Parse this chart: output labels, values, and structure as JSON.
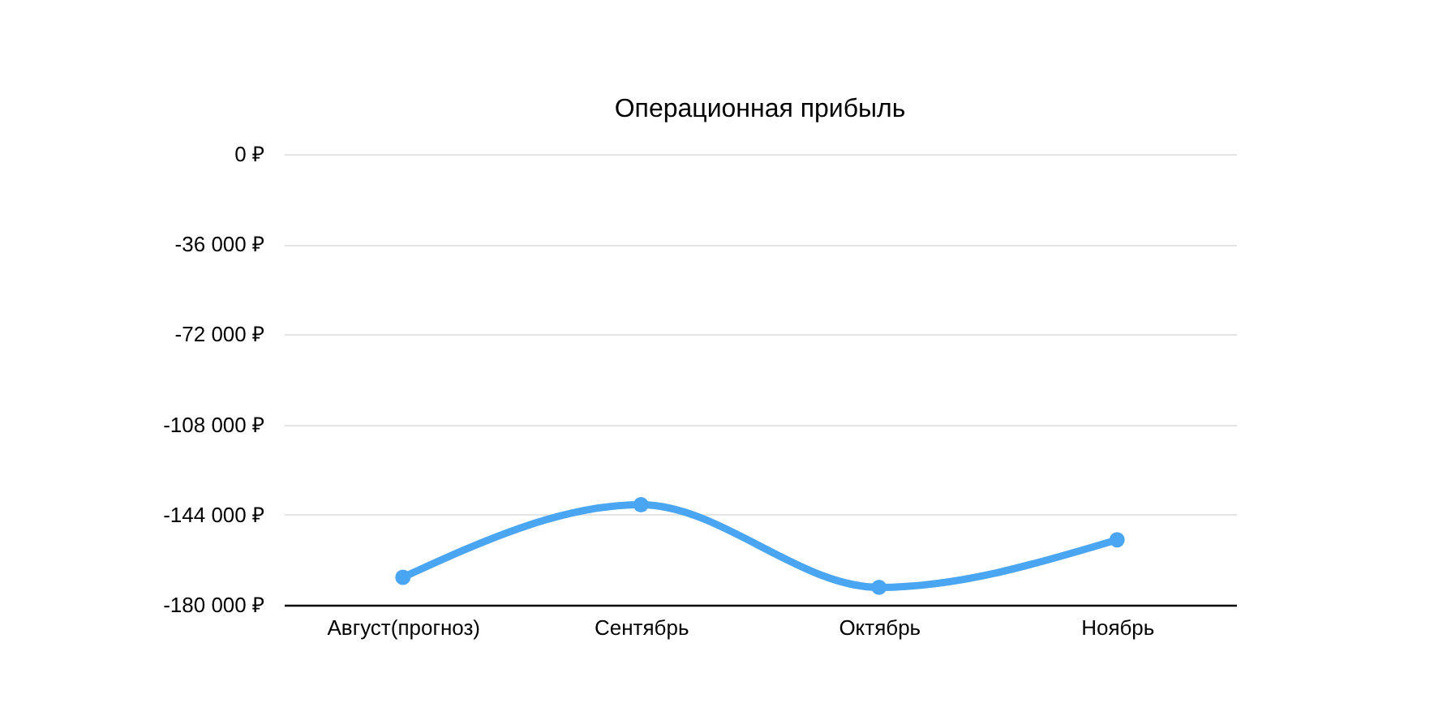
{
  "chart_data": {
    "type": "line",
    "title": "Операционная прибыль",
    "categories": [
      "Август(прогноз)",
      "Сентябрь",
      "Октябрь",
      "Ноябрь"
    ],
    "series": [
      {
        "color": "#4aa6f2",
        "values": [
          -169000,
          -140000,
          -173000,
          -154000
        ]
      }
    ],
    "ylim": [
      -180000,
      0
    ],
    "yticks": [
      {
        "value": 0,
        "label": "0 ₽"
      },
      {
        "value": -36000,
        "label": "-36 000 ₽"
      },
      {
        "value": -72000,
        "label": "-72 000 ₽"
      },
      {
        "value": -108000,
        "label": "-108 000 ₽"
      },
      {
        "value": -144000,
        "label": "-144 000 ₽"
      },
      {
        "value": -180000,
        "label": "-180 000 ₽"
      }
    ],
    "grid": "y",
    "marker": "circle",
    "line_style": "solid"
  }
}
